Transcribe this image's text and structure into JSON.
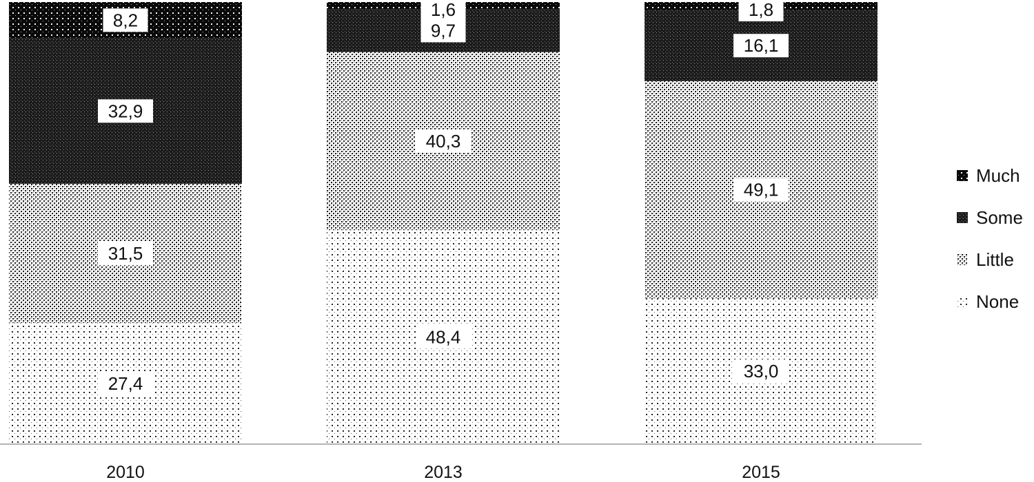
{
  "chart_data": {
    "type": "bar",
    "stacked": true,
    "orientation": "vertical",
    "categories": [
      "2010",
      "2013",
      "2015"
    ],
    "series": [
      {
        "name": "None",
        "values": [
          27.4,
          48.4,
          33.0
        ],
        "labels": [
          "27,4",
          "48,4",
          "33,0"
        ],
        "pattern": "sparse-dots"
      },
      {
        "name": "Little",
        "values": [
          31.5,
          40.3,
          49.1
        ],
        "labels": [
          "31,5",
          "40,3",
          "49,1"
        ],
        "pattern": "checker-dots"
      },
      {
        "name": "Some",
        "values": [
          32.9,
          9.7,
          16.1
        ],
        "labels": [
          "32,9",
          "9,7",
          "16,1"
        ],
        "pattern": "dense-dark"
      },
      {
        "name": "Much",
        "values": [
          8.2,
          1.6,
          1.8
        ],
        "labels": [
          "8,2",
          "1,6",
          "1,8"
        ],
        "pattern": "dark-white-dots"
      }
    ],
    "legend_order": [
      "Much",
      "Some",
      "Little",
      "None"
    ],
    "legend_position": "right",
    "ylim": [
      0,
      100
    ],
    "y_axis_visible": false,
    "grid": false,
    "title": "",
    "xlabel": "",
    "ylabel": ""
  }
}
